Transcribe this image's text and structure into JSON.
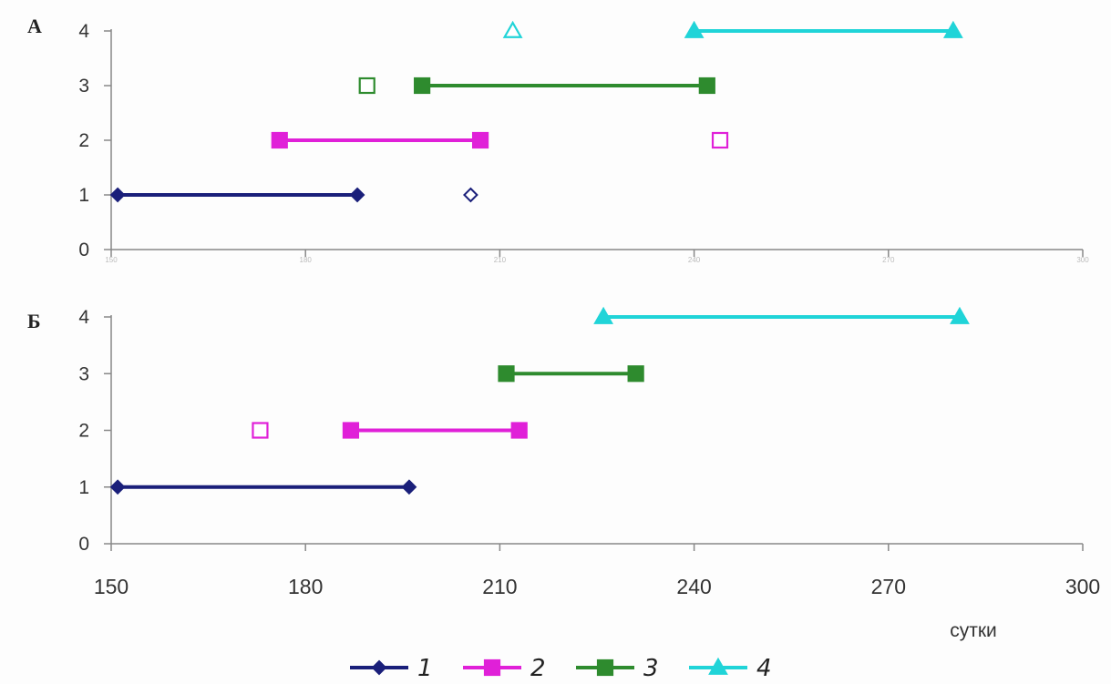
{
  "chart_data": [
    {
      "type": "line",
      "panel_label": "А",
      "xlim": [
        150,
        300
      ],
      "ylim": [
        0,
        4
      ],
      "x_ticks": [
        150,
        180,
        210,
        240,
        270,
        300
      ],
      "x_tick_labels_visible": false,
      "y_ticks": [
        0,
        1,
        2,
        3,
        4
      ],
      "grid": false,
      "series": [
        {
          "name": "1",
          "color": "#1a1f7a",
          "marker": "diamond",
          "segments": [
            [
              151,
              188
            ]
          ],
          "open_points": [
            205.5
          ]
        },
        {
          "name": "2",
          "color": "#e020d8",
          "marker": "square",
          "segments": [
            [
              176,
              207
            ]
          ],
          "open_points": [
            244
          ]
        },
        {
          "name": "3",
          "color": "#2e8b2e",
          "marker": "square",
          "segments": [
            [
              198,
              242
            ]
          ],
          "open_points": [
            189.5
          ]
        },
        {
          "name": "4",
          "color": "#20d4d8",
          "marker": "triangle",
          "segments": [
            [
              240,
              280
            ]
          ],
          "open_points": [
            212
          ]
        }
      ]
    },
    {
      "type": "line",
      "panel_label": "Б",
      "xlim": [
        150,
        300
      ],
      "ylim": [
        0,
        4
      ],
      "x_ticks": [
        150,
        180,
        210,
        240,
        270,
        300
      ],
      "x_tick_labels_visible": true,
      "xlabel": "сутки",
      "y_ticks": [
        0,
        1,
        2,
        3,
        4
      ],
      "grid": false,
      "series": [
        {
          "name": "1",
          "color": "#1a1f7a",
          "marker": "diamond",
          "segments": [
            [
              151,
              196
            ]
          ],
          "open_points": []
        },
        {
          "name": "2",
          "color": "#e020d8",
          "marker": "square",
          "segments": [
            [
              187,
              213
            ]
          ],
          "open_points": [
            173
          ]
        },
        {
          "name": "3",
          "color": "#2e8b2e",
          "marker": "square",
          "segments": [
            [
              211,
              231
            ]
          ],
          "open_points": []
        },
        {
          "name": "4",
          "color": "#20d4d8",
          "marker": "triangle",
          "segments": [
            [
              226,
              281
            ]
          ],
          "open_points": []
        }
      ]
    }
  ],
  "legend": {
    "placement": "bottom-center",
    "items": [
      "1",
      "2",
      "3",
      "4"
    ]
  }
}
